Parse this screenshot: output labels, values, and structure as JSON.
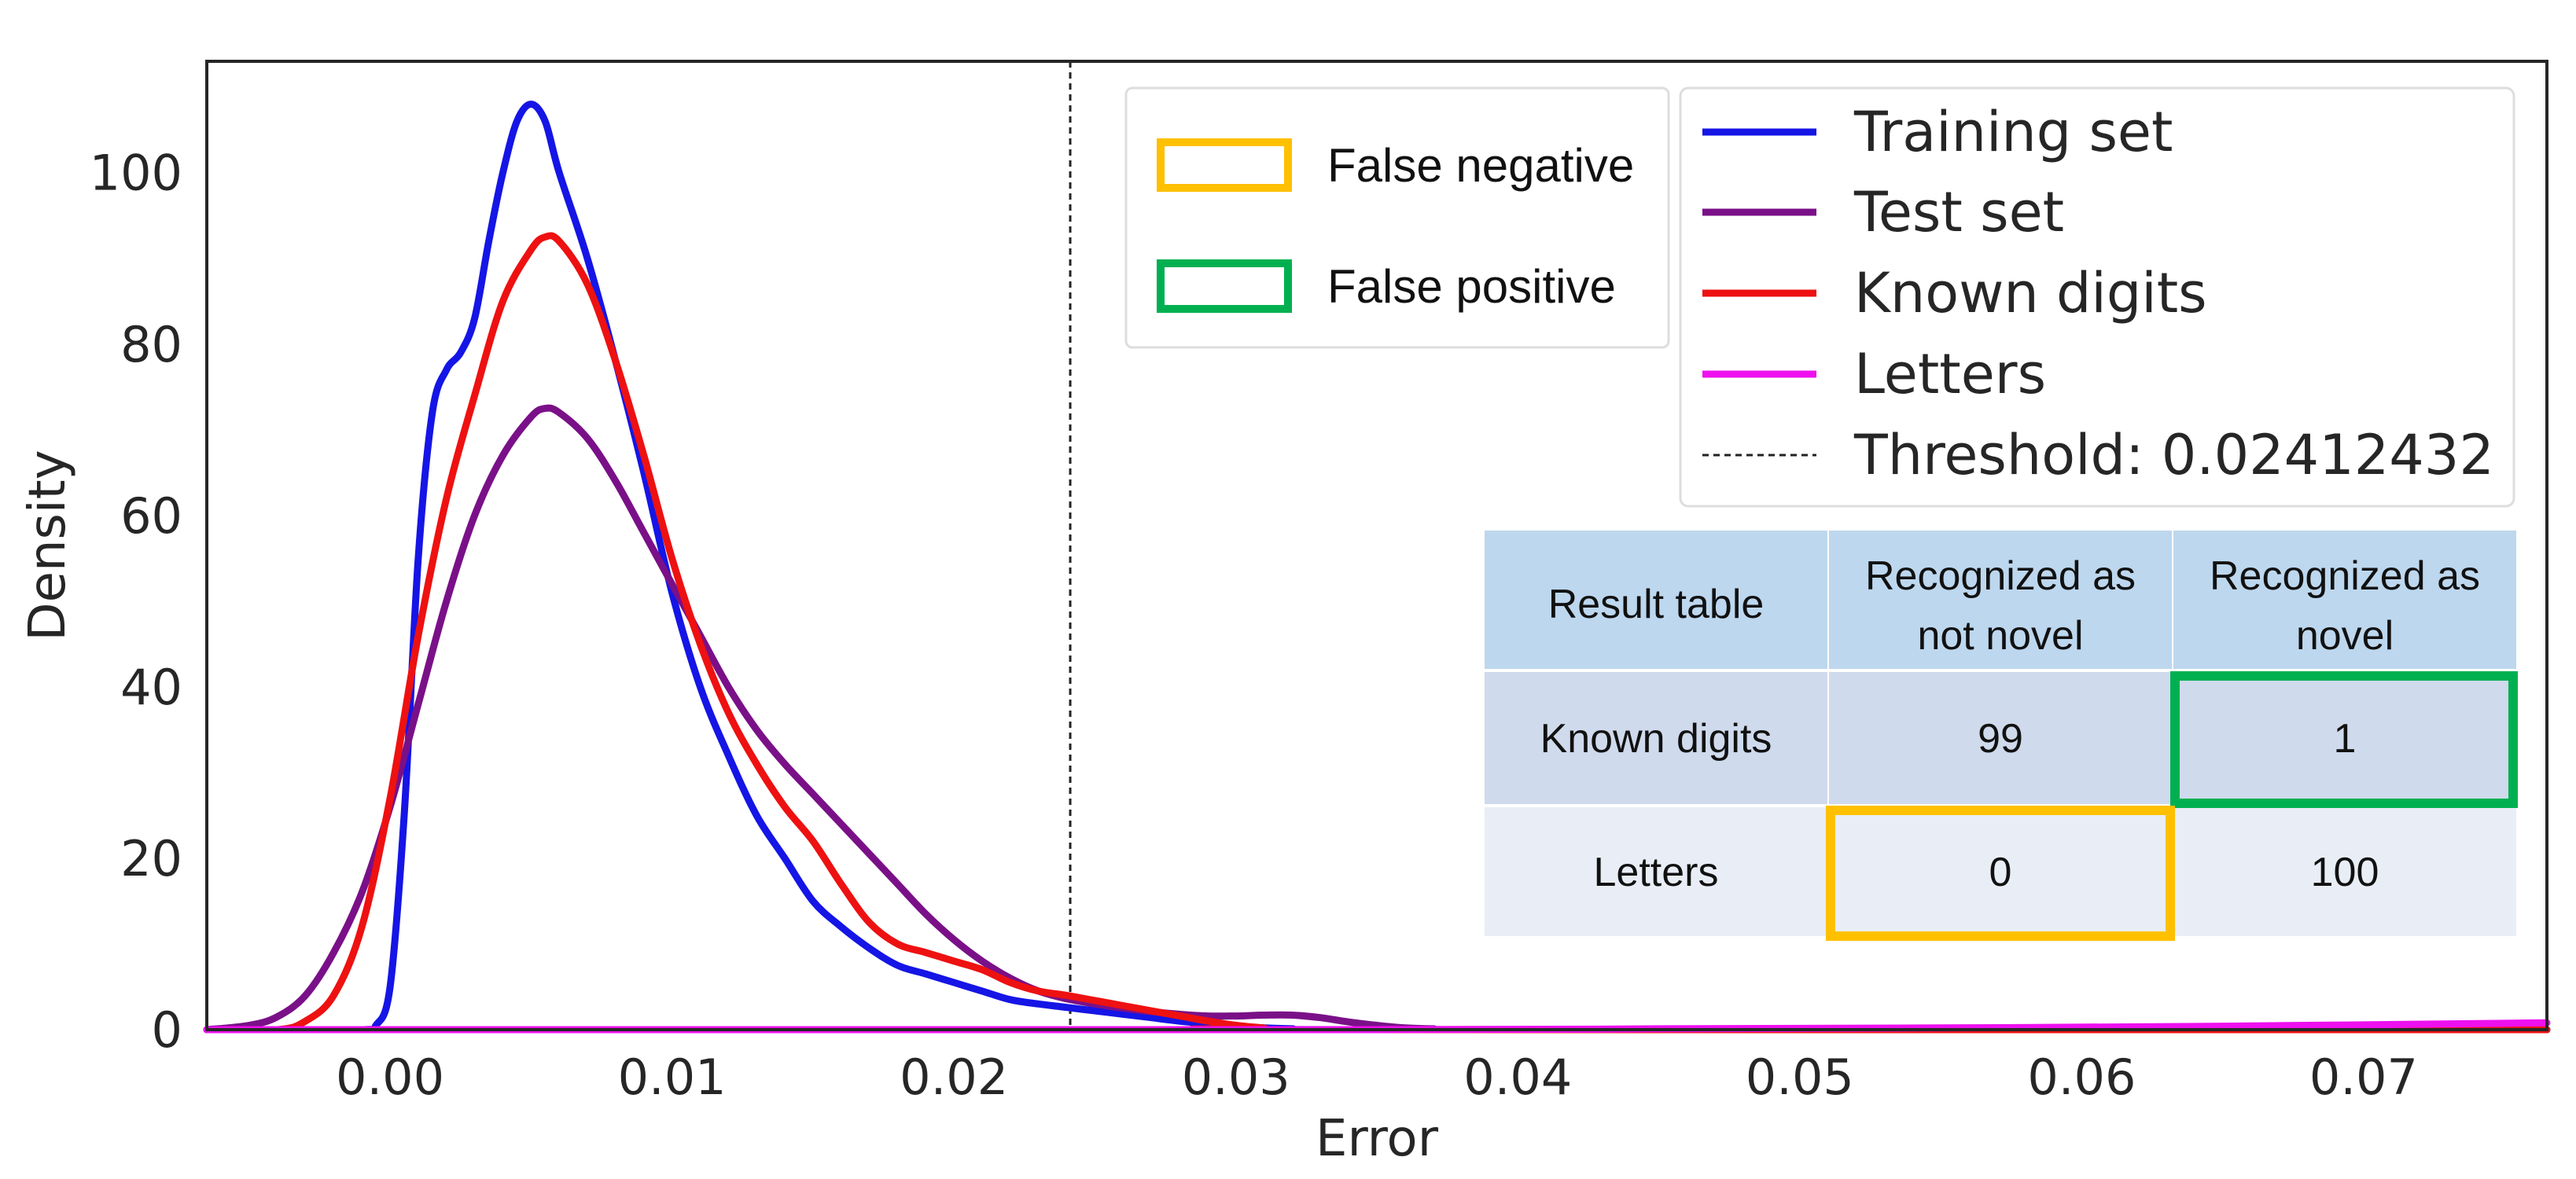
{
  "chart_data": {
    "type": "line",
    "xlabel": "Error",
    "ylabel": "Density",
    "xlim": [
      -0.0065,
      0.0765
    ],
    "ylim": [
      0,
      113
    ],
    "x_ticks": [
      0.0,
      0.01,
      0.02,
      0.03,
      0.04,
      0.05,
      0.06,
      0.07
    ],
    "x_tick_labels": [
      "0.00",
      "0.01",
      "0.02",
      "0.03",
      "0.04",
      "0.05",
      "0.06",
      "0.07"
    ],
    "y_ticks": [
      0,
      20,
      40,
      60,
      80,
      100
    ],
    "y_tick_labels": [
      "0",
      "20",
      "40",
      "60",
      "80",
      "100"
    ],
    "threshold": {
      "value": 0.02412432,
      "label": "Threshold: 0.02412432",
      "color": "#222222"
    },
    "series": [
      {
        "name": "Training set",
        "color": "#1515e6",
        "points": [
          [
            -0.0065,
            0
          ],
          [
            -0.001,
            0
          ],
          [
            -0.0005,
            0.5
          ],
          [
            0.0,
            5
          ],
          [
            0.0005,
            25
          ],
          [
            0.001,
            55
          ],
          [
            0.0015,
            72
          ],
          [
            0.002,
            77
          ],
          [
            0.0025,
            79
          ],
          [
            0.003,
            83
          ],
          [
            0.0035,
            92
          ],
          [
            0.004,
            100
          ],
          [
            0.0045,
            106
          ],
          [
            0.005,
            108
          ],
          [
            0.0055,
            106
          ],
          [
            0.006,
            100
          ],
          [
            0.007,
            90
          ],
          [
            0.008,
            78
          ],
          [
            0.009,
            65
          ],
          [
            0.01,
            51
          ],
          [
            0.011,
            40
          ],
          [
            0.012,
            32
          ],
          [
            0.013,
            25
          ],
          [
            0.014,
            20
          ],
          [
            0.015,
            15
          ],
          [
            0.016,
            12
          ],
          [
            0.017,
            9.5
          ],
          [
            0.018,
            7.5
          ],
          [
            0.019,
            6.5
          ],
          [
            0.02,
            5.5
          ],
          [
            0.021,
            4.5
          ],
          [
            0.022,
            3.5
          ],
          [
            0.023,
            3
          ],
          [
            0.024,
            2.6
          ],
          [
            0.025,
            2.2
          ],
          [
            0.026,
            1.8
          ],
          [
            0.027,
            1.4
          ],
          [
            0.028,
            1.0
          ],
          [
            0.029,
            0.7
          ],
          [
            0.03,
            0.4
          ],
          [
            0.031,
            0.2
          ],
          [
            0.032,
            0.1
          ],
          [
            0.034,
            0
          ],
          [
            0.0765,
            0
          ]
        ]
      },
      {
        "name": "Test set",
        "color": "#7a1088",
        "points": [
          [
            -0.0065,
            0
          ],
          [
            -0.005,
            0.5
          ],
          [
            -0.004,
            1.5
          ],
          [
            -0.003,
            4
          ],
          [
            -0.002,
            9
          ],
          [
            -0.001,
            16
          ],
          [
            0.0,
            26
          ],
          [
            0.001,
            38
          ],
          [
            0.002,
            50
          ],
          [
            0.003,
            60
          ],
          [
            0.004,
            67
          ],
          [
            0.005,
            71.5
          ],
          [
            0.0055,
            72.5
          ],
          [
            0.006,
            72
          ],
          [
            0.007,
            69
          ],
          [
            0.008,
            64
          ],
          [
            0.009,
            58
          ],
          [
            0.01,
            52
          ],
          [
            0.011,
            46
          ],
          [
            0.012,
            40
          ],
          [
            0.013,
            35
          ],
          [
            0.014,
            31
          ],
          [
            0.015,
            27.5
          ],
          [
            0.016,
            24
          ],
          [
            0.017,
            20.5
          ],
          [
            0.018,
            17
          ],
          [
            0.019,
            13.5
          ],
          [
            0.02,
            10.5
          ],
          [
            0.021,
            8
          ],
          [
            0.022,
            6
          ],
          [
            0.023,
            4.5
          ],
          [
            0.024,
            3.6
          ],
          [
            0.025,
            3
          ],
          [
            0.026,
            2.5
          ],
          [
            0.027,
            2.1
          ],
          [
            0.028,
            1.8
          ],
          [
            0.029,
            1.6
          ],
          [
            0.03,
            1.6
          ],
          [
            0.031,
            1.7
          ],
          [
            0.032,
            1.7
          ],
          [
            0.033,
            1.4
          ],
          [
            0.034,
            0.9
          ],
          [
            0.035,
            0.5
          ],
          [
            0.036,
            0.2
          ],
          [
            0.037,
            0.1
          ],
          [
            0.039,
            0
          ],
          [
            0.0765,
            0
          ]
        ]
      },
      {
        "name": "Known digits",
        "color": "#ee1111",
        "points": [
          [
            -0.0065,
            0
          ],
          [
            -0.004,
            0
          ],
          [
            -0.003,
            1
          ],
          [
            -0.002,
            4
          ],
          [
            -0.001,
            12
          ],
          [
            0.0,
            27
          ],
          [
            0.001,
            46
          ],
          [
            0.002,
            62
          ],
          [
            0.003,
            74
          ],
          [
            0.004,
            85
          ],
          [
            0.005,
            91
          ],
          [
            0.0055,
            92.5
          ],
          [
            0.006,
            92
          ],
          [
            0.007,
            87
          ],
          [
            0.008,
            78
          ],
          [
            0.009,
            67
          ],
          [
            0.01,
            55
          ],
          [
            0.011,
            45
          ],
          [
            0.012,
            37
          ],
          [
            0.013,
            31
          ],
          [
            0.014,
            26
          ],
          [
            0.015,
            22
          ],
          [
            0.016,
            17
          ],
          [
            0.017,
            12.5
          ],
          [
            0.018,
            10
          ],
          [
            0.019,
            9
          ],
          [
            0.02,
            8
          ],
          [
            0.021,
            7
          ],
          [
            0.022,
            5.5
          ],
          [
            0.023,
            4.5
          ],
          [
            0.024,
            4
          ],
          [
            0.025,
            3.4
          ],
          [
            0.026,
            2.8
          ],
          [
            0.027,
            2.2
          ],
          [
            0.028,
            1.6
          ],
          [
            0.029,
            1.0
          ],
          [
            0.03,
            0.5
          ],
          [
            0.031,
            0.2
          ],
          [
            0.032,
            0
          ],
          [
            0.0765,
            0
          ]
        ]
      },
      {
        "name": "Letters",
        "color": "#ee10ee",
        "points": [
          [
            -0.0065,
            0
          ],
          [
            0.035,
            0
          ],
          [
            0.045,
            0.1
          ],
          [
            0.055,
            0.2
          ],
          [
            0.065,
            0.4
          ],
          [
            0.0765,
            0.8
          ]
        ]
      }
    ],
    "legend_location": "upper right"
  },
  "annotation_legend": {
    "items": [
      {
        "label": "False negative",
        "color": "#ffc000"
      },
      {
        "label": "False positive",
        "color": "#00b050"
      }
    ]
  },
  "result_table": {
    "corner": "Result table",
    "col_headers": [
      {
        "line1": "Recognized as",
        "line2": "not novel"
      },
      {
        "line1": "Recognized as",
        "line2": "novel"
      }
    ],
    "rows": [
      {
        "label": "Known digits",
        "values": [
          "99",
          "1"
        ]
      },
      {
        "label": "Letters",
        "values": [
          "0",
          "100"
        ]
      }
    ],
    "colors": {
      "header": "#bdd7ee",
      "row1": "#cfdaec",
      "row2": "#e9eef6"
    }
  }
}
